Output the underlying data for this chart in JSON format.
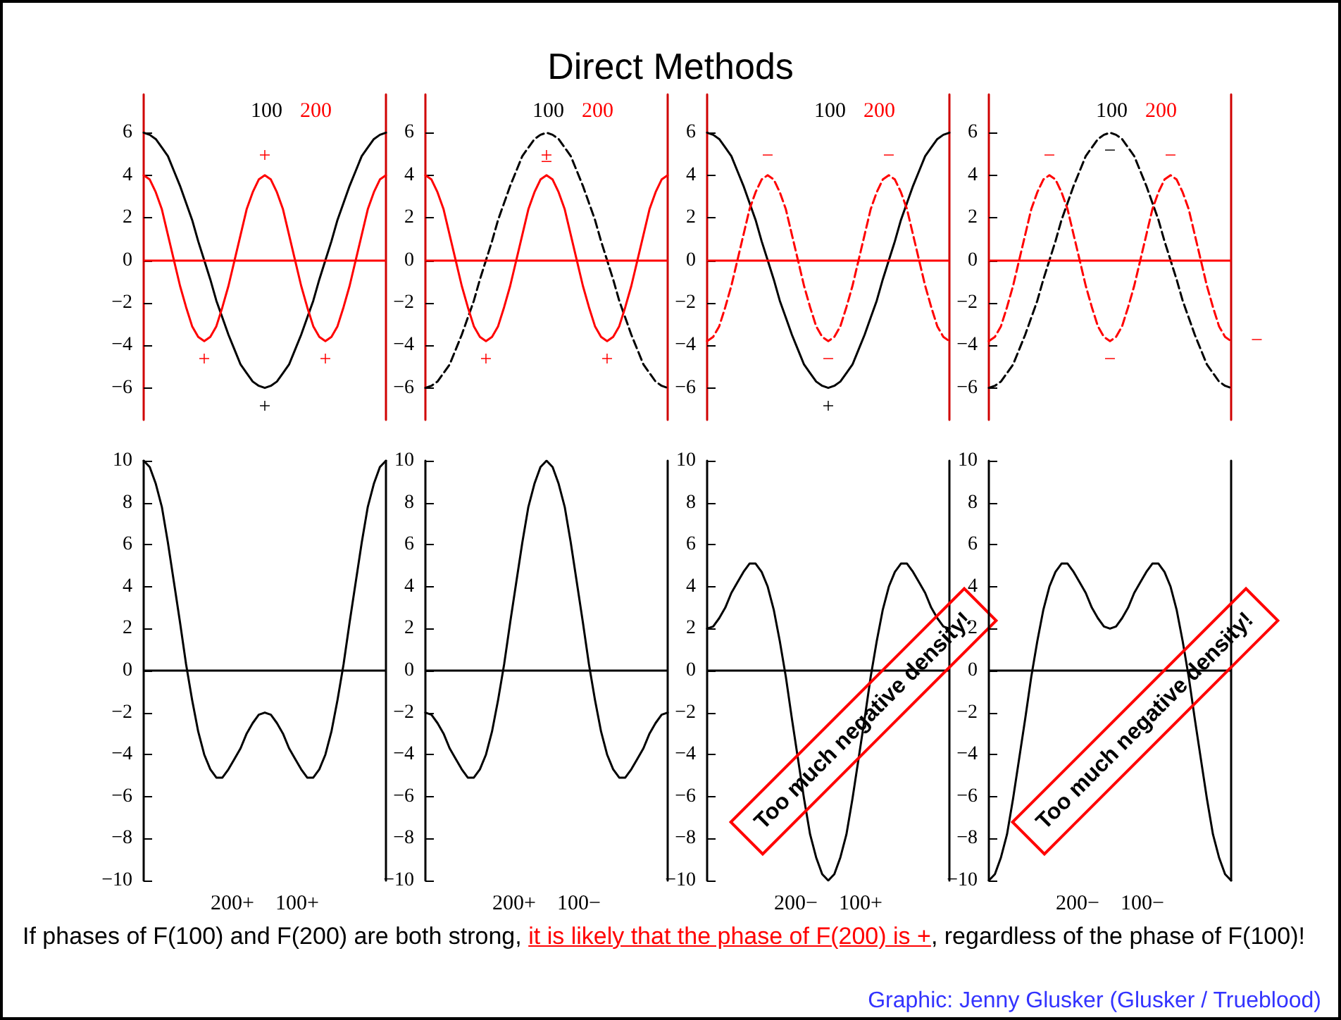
{
  "chart_data": [
    {
      "type": "line",
      "categories": [
        null,
        null,
        null,
        null,
        null,
        null,
        null,
        null,
        null,
        null,
        null,
        null,
        null,
        null,
        null,
        null,
        null,
        null,
        null,
        null,
        null,
        null,
        null,
        null,
        null,
        null,
        null,
        null,
        null,
        null,
        null,
        null,
        null,
        null,
        null,
        null,
        null,
        null,
        null,
        null,
        null
      ],
      "ylim": [
        -7.5,
        7.8
      ],
      "yticks": [
        -6,
        -4,
        -2,
        0,
        2,
        4,
        6
      ],
      "tick_labels": "y",
      "marker": "none",
      "ref_lines": [
        {
          "axis": "y",
          "value": 0,
          "color": "#ff0000"
        }
      ],
      "series": [
        {
          "name": "100",
          "color": "#000000",
          "line_style": "solid",
          "values": [
            6,
            5.9,
            5.7,
            5.3,
            4.9,
            4.2,
            3.5,
            2.7,
            1.9,
            0.9,
            0,
            -0.9,
            -1.9,
            -2.7,
            -3.5,
            -4.2,
            -4.9,
            -5.3,
            -5.7,
            -5.9,
            -6,
            -5.9,
            -5.7,
            -5.3,
            -4.9,
            -4.2,
            -3.5,
            -2.7,
            -1.9,
            -0.9,
            0,
            0.9,
            1.9,
            2.7,
            3.5,
            4.2,
            4.9,
            5.3,
            5.7,
            5.9,
            6
          ],
          "value_labels": [
            null,
            null,
            null,
            null,
            null,
            null,
            null,
            null,
            null,
            null,
            null,
            null,
            null,
            null,
            null,
            null,
            null,
            null,
            null,
            null,
            "+",
            null,
            null,
            null,
            null,
            null,
            null,
            null,
            null,
            null,
            null,
            null,
            null,
            null,
            null,
            null,
            null,
            null,
            null,
            null,
            null
          ]
        },
        {
          "name": "200",
          "color": "#ff0000",
          "line_style": "solid",
          "values": [
            4,
            3.8,
            3.2,
            2.4,
            1.2,
            0,
            -1.2,
            -2.2,
            -3.1,
            -3.6,
            -3.8,
            -3.6,
            -3.1,
            -2.2,
            -1.2,
            0,
            1.2,
            2.4,
            3.2,
            3.8,
            4,
            3.8,
            3.2,
            2.4,
            1.2,
            0,
            -1.2,
            -2.2,
            -3.1,
            -3.6,
            -3.8,
            -3.6,
            -3.1,
            -2.2,
            -1.2,
            0,
            1.2,
            2.4,
            3.2,
            3.8,
            4
          ],
          "value_labels": [
            null,
            null,
            null,
            null,
            null,
            null,
            null,
            null,
            null,
            null,
            "+",
            null,
            null,
            null,
            null,
            null,
            null,
            null,
            null,
            null,
            "+",
            null,
            null,
            null,
            null,
            null,
            null,
            null,
            null,
            null,
            "+",
            null,
            null,
            null,
            null,
            null,
            null,
            null,
            null,
            null,
            null
          ]
        }
      ],
      "annotations": [
        "Direct Methods",
        "If phases of F(100) and F(200) are both strong, ",
        "it is likely that the phase of F(200) is +",
        ", regardless of the phase of F(100)!",
        "Graphic: Jenny Glusker (Glusker / Trueblood)"
      ]
    },
    {
      "type": "line",
      "categories": [
        null,
        null,
        null,
        null,
        null,
        null,
        null,
        null,
        null,
        null,
        null,
        null,
        null,
        null,
        null,
        null,
        null,
        null,
        null,
        null,
        null,
        null,
        null,
        null,
        null,
        null,
        null,
        null,
        null,
        null,
        null,
        null,
        null,
        null,
        null,
        null,
        null,
        null,
        null,
        null,
        null
      ],
      "ylim": [
        -7.5,
        7.8
      ],
      "yticks": [
        -6,
        -4,
        -2,
        0,
        2,
        4,
        6
      ],
      "tick_labels": "y",
      "marker": "none",
      "ref_lines": [
        {
          "axis": "y",
          "value": 0,
          "color": "#ff0000"
        }
      ],
      "series": [
        {
          "name": "100",
          "color": "#000000",
          "line_style": "dashed",
          "values": [
            -6,
            -5.9,
            -5.7,
            -5.3,
            -4.9,
            -4.2,
            -3.5,
            -2.7,
            -1.9,
            -0.9,
            0,
            0.9,
            1.9,
            2.7,
            3.5,
            4.2,
            4.9,
            5.3,
            5.7,
            5.9,
            6,
            5.9,
            5.7,
            5.3,
            4.9,
            4.2,
            3.5,
            2.7,
            1.9,
            0.9,
            0,
            -0.9,
            -1.9,
            -2.7,
            -3.5,
            -4.2,
            -4.9,
            -5.3,
            -5.7,
            -5.9,
            -6
          ]
        },
        {
          "name": "200",
          "color": "#ff0000",
          "line_style": "solid",
          "values": [
            4,
            3.8,
            3.2,
            2.4,
            1.2,
            0,
            -1.2,
            -2.2,
            -3.1,
            -3.6,
            -3.8,
            -3.6,
            -3.1,
            -2.2,
            -1.2,
            0,
            1.2,
            2.4,
            3.2,
            3.8,
            4,
            3.8,
            3.2,
            2.4,
            1.2,
            0,
            -1.2,
            -2.2,
            -3.1,
            -3.6,
            -3.8,
            -3.6,
            -3.1,
            -2.2,
            -1.2,
            0,
            1.2,
            2.4,
            3.2,
            3.8,
            4
          ],
          "value_labels": [
            null,
            null,
            null,
            null,
            null,
            null,
            null,
            null,
            null,
            null,
            "+",
            null,
            null,
            null,
            null,
            null,
            null,
            null,
            null,
            null,
            "±",
            null,
            null,
            null,
            null,
            null,
            null,
            null,
            null,
            null,
            "+",
            null,
            null,
            null,
            null,
            null,
            null,
            null,
            null,
            null,
            null
          ]
        }
      ]
    },
    {
      "type": "line",
      "categories": [
        null,
        null,
        null,
        null,
        null,
        null,
        null,
        null,
        null,
        null,
        null,
        null,
        null,
        null,
        null,
        null,
        null,
        null,
        null,
        null,
        null,
        null,
        null,
        null,
        null,
        null,
        null,
        null,
        null,
        null,
        null,
        null,
        null,
        null,
        null,
        null,
        null,
        null,
        null,
        null,
        null
      ],
      "ylim": [
        -7.5,
        7.8
      ],
      "yticks": [
        -6,
        -4,
        -2,
        0,
        2,
        4,
        6
      ],
      "tick_labels": "y",
      "marker": "none",
      "ref_lines": [
        {
          "axis": "y",
          "value": 0,
          "color": "#ff0000"
        }
      ],
      "series": [
        {
          "name": "100",
          "color": "#000000",
          "line_style": "solid",
          "values": [
            6,
            5.9,
            5.7,
            5.3,
            4.9,
            4.2,
            3.5,
            2.7,
            1.9,
            0.9,
            0,
            -0.9,
            -1.9,
            -2.7,
            -3.5,
            -4.2,
            -4.9,
            -5.3,
            -5.7,
            -5.9,
            -6,
            -5.9,
            -5.7,
            -5.3,
            -4.9,
            -4.2,
            -3.5,
            -2.7,
            -1.9,
            -0.9,
            0,
            0.9,
            1.9,
            2.7,
            3.5,
            4.2,
            4.9,
            5.3,
            5.7,
            5.9,
            6
          ],
          "value_labels": [
            null,
            null,
            null,
            null,
            null,
            null,
            null,
            null,
            null,
            null,
            null,
            null,
            null,
            null,
            null,
            null,
            null,
            null,
            null,
            null,
            "+",
            null,
            null,
            null,
            null,
            null,
            null,
            null,
            null,
            null,
            null,
            null,
            null,
            null,
            null,
            null,
            null,
            null,
            null,
            null,
            null
          ]
        },
        {
          "name": "200",
          "color": "#ff0000",
          "line_style": "dashed",
          "values": [
            -3.8,
            -3.6,
            -3.1,
            -2.2,
            -1.2,
            0,
            1.2,
            2.4,
            3.2,
            3.8,
            4,
            3.8,
            3.2,
            2.4,
            1.2,
            0,
            -1.2,
            -2.2,
            -3.1,
            -3.6,
            -3.8,
            -3.6,
            -3.1,
            -2.2,
            -1.2,
            0,
            1.2,
            2.4,
            3.2,
            3.8,
            4,
            3.8,
            3.2,
            2.4,
            1.2,
            0,
            -1.2,
            -2.2,
            -3.1,
            -3.6,
            -3.8
          ],
          "value_labels": [
            null,
            null,
            null,
            null,
            null,
            null,
            null,
            null,
            null,
            null,
            "−",
            null,
            null,
            null,
            null,
            null,
            null,
            null,
            null,
            null,
            "−",
            null,
            null,
            null,
            null,
            null,
            null,
            null,
            null,
            null,
            "−",
            null,
            null,
            null,
            null,
            null,
            null,
            null,
            null,
            null,
            null
          ]
        }
      ]
    },
    {
      "type": "line",
      "categories": [
        null,
        null,
        null,
        null,
        null,
        null,
        null,
        null,
        null,
        null,
        null,
        null,
        null,
        null,
        null,
        null,
        null,
        null,
        null,
        null,
        null,
        null,
        null,
        null,
        null,
        null,
        null,
        null,
        null,
        null,
        null,
        null,
        null,
        null,
        null,
        null,
        null,
        null,
        null,
        null,
        null
      ],
      "ylim": [
        -7.5,
        7.8
      ],
      "yticks": [
        -6,
        -4,
        -2,
        0,
        2,
        4,
        6
      ],
      "tick_labels": "y",
      "marker": "none",
      "ref_lines": [
        {
          "axis": "y",
          "value": 0,
          "color": "#ff0000"
        }
      ],
      "series": [
        {
          "name": "100",
          "color": "#000000",
          "line_style": "dashed",
          "values": [
            -6,
            -5.9,
            -5.7,
            -5.3,
            -4.9,
            -4.2,
            -3.5,
            -2.7,
            -1.9,
            -0.9,
            0,
            0.9,
            1.9,
            2.7,
            3.5,
            4.2,
            4.9,
            5.3,
            5.7,
            5.9,
            6,
            5.9,
            5.7,
            5.3,
            4.9,
            4.2,
            3.5,
            2.7,
            1.9,
            0.9,
            0,
            -0.9,
            -1.9,
            -2.7,
            -3.5,
            -4.2,
            -4.9,
            -5.3,
            -5.7,
            -5.9,
            -6
          ],
          "value_labels": [
            null,
            null,
            null,
            null,
            null,
            null,
            null,
            null,
            null,
            null,
            null,
            null,
            null,
            null,
            null,
            null,
            null,
            null,
            null,
            null,
            "−",
            null,
            null,
            null,
            null,
            null,
            null,
            null,
            null,
            null,
            null,
            null,
            null,
            null,
            null,
            null,
            null,
            null,
            null,
            null,
            null
          ]
        },
        {
          "name": "200",
          "color": "#ff0000",
          "line_style": "dashed",
          "values": [
            -3.8,
            -3.6,
            -3.1,
            -2.2,
            -1.2,
            0,
            1.2,
            2.4,
            3.2,
            3.8,
            4,
            3.8,
            3.2,
            2.4,
            1.2,
            0,
            -1.2,
            -2.2,
            -3.1,
            -3.6,
            -3.8,
            -3.6,
            -3.1,
            -2.2,
            -1.2,
            0,
            1.2,
            2.4,
            3.2,
            3.8,
            4,
            3.8,
            3.2,
            2.4,
            1.2,
            0,
            -1.2,
            -2.2,
            -3.1,
            -3.6,
            -3.8
          ],
          "value_labels": [
            null,
            null,
            null,
            null,
            null,
            null,
            null,
            null,
            null,
            null,
            "−",
            null,
            null,
            null,
            null,
            null,
            null,
            null,
            null,
            null,
            "−",
            null,
            null,
            null,
            null,
            null,
            null,
            null,
            null,
            null,
            "−",
            null,
            null,
            null,
            null,
            null,
            null,
            null,
            null,
            null,
            "−"
          ]
        }
      ]
    },
    {
      "type": "line",
      "xlabel": "200+    100+",
      "categories": [
        null,
        null,
        null,
        null,
        null,
        null,
        null,
        null,
        null,
        null,
        null,
        null,
        null,
        null,
        null,
        null,
        null,
        null,
        null,
        null,
        null,
        null,
        null,
        null,
        null,
        null,
        null,
        null,
        null,
        null,
        null,
        null,
        null,
        null,
        null,
        null,
        null,
        null,
        null,
        null,
        null
      ],
      "ylim": [
        -10,
        10
      ],
      "yticks": [
        -10,
        -8,
        -6,
        -4,
        -2,
        0,
        2,
        4,
        6,
        8,
        10
      ],
      "tick_labels": "y",
      "marker": "none",
      "ref_lines": [
        {
          "axis": "y",
          "value": 0,
          "color": "#000000"
        }
      ],
      "series": [
        {
          "color": "#000000",
          "values": [
            10,
            9.7,
            8.9,
            7.8,
            6.1,
            4.2,
            2.3,
            0.3,
            -1.4,
            -2.9,
            -4,
            -4.7,
            -5.1,
            -5.1,
            -4.7,
            -4.2,
            -3.7,
            -3,
            -2.5,
            -2.1,
            -2,
            -2.1,
            -2.5,
            -3,
            -3.7,
            -4.2,
            -4.7,
            -5.1,
            -5.1,
            -4.7,
            -4,
            -2.9,
            -1.4,
            0.3,
            2.3,
            4.2,
            6.1,
            7.8,
            8.9,
            9.7,
            10
          ]
        }
      ]
    },
    {
      "type": "line",
      "xlabel": "200+    100−",
      "categories": [
        null,
        null,
        null,
        null,
        null,
        null,
        null,
        null,
        null,
        null,
        null,
        null,
        null,
        null,
        null,
        null,
        null,
        null,
        null,
        null,
        null,
        null,
        null,
        null,
        null,
        null,
        null,
        null,
        null,
        null,
        null,
        null,
        null,
        null,
        null,
        null,
        null,
        null,
        null,
        null,
        null
      ],
      "ylim": [
        -10,
        10
      ],
      "yticks": [
        -10,
        -8,
        -6,
        -4,
        -2,
        0,
        2,
        4,
        6,
        8,
        10
      ],
      "tick_labels": "y",
      "marker": "none",
      "ref_lines": [
        {
          "axis": "y",
          "value": 0,
          "color": "#000000"
        }
      ],
      "series": [
        {
          "color": "#000000",
          "values": [
            -2,
            -2.1,
            -2.5,
            -3,
            -3.7,
            -4.2,
            -4.7,
            -5.1,
            -5.1,
            -4.7,
            -4,
            -2.9,
            -1.4,
            0.3,
            2.3,
            4.2,
            6.1,
            7.8,
            8.9,
            9.7,
            10,
            9.7,
            8.9,
            7.8,
            6.1,
            4.2,
            2.3,
            0.3,
            -1.4,
            -2.9,
            -4,
            -4.7,
            -5.1,
            -5.1,
            -4.7,
            -4.2,
            -3.7,
            -3,
            -2.5,
            -2.1,
            -2
          ]
        }
      ]
    },
    {
      "type": "line",
      "xlabel": "200−    100+",
      "categories": [
        null,
        null,
        null,
        null,
        null,
        null,
        null,
        null,
        null,
        null,
        null,
        null,
        null,
        null,
        null,
        null,
        null,
        null,
        null,
        null,
        null,
        null,
        null,
        null,
        null,
        null,
        null,
        null,
        null,
        null,
        null,
        null,
        null,
        null,
        null,
        null,
        null,
        null,
        null,
        null,
        null
      ],
      "ylim": [
        -10,
        10
      ],
      "yticks": [
        -10,
        -8,
        -6,
        -4,
        -2,
        0,
        2,
        4,
        6,
        8,
        10
      ],
      "tick_labels": "y",
      "marker": "none",
      "ref_lines": [
        {
          "axis": "y",
          "value": 0,
          "color": "#000000"
        }
      ],
      "series": [
        {
          "color": "#000000",
          "values": [
            2,
            2.1,
            2.5,
            3,
            3.7,
            4.2,
            4.7,
            5.1,
            5.1,
            4.7,
            4,
            2.9,
            1.4,
            -0.3,
            -2.3,
            -4.2,
            -6.1,
            -7.8,
            -8.9,
            -9.7,
            -10,
            -9.7,
            -8.9,
            -7.8,
            -6.1,
            -4.2,
            -2.3,
            -0.3,
            1.4,
            2.9,
            4,
            4.7,
            5.1,
            5.1,
            4.7,
            4.2,
            3.7,
            3,
            2.5,
            2.1,
            2
          ]
        }
      ],
      "annotations": [
        "Too much negative density!"
      ]
    },
    {
      "type": "line",
      "xlabel": "200−    100−",
      "categories": [
        null,
        null,
        null,
        null,
        null,
        null,
        null,
        null,
        null,
        null,
        null,
        null,
        null,
        null,
        null,
        null,
        null,
        null,
        null,
        null,
        null,
        null,
        null,
        null,
        null,
        null,
        null,
        null,
        null,
        null,
        null,
        null,
        null,
        null,
        null,
        null,
        null,
        null,
        null,
        null,
        null
      ],
      "ylim": [
        -10,
        10
      ],
      "yticks": [
        -10,
        -8,
        -6,
        -4,
        -2,
        0,
        2,
        4,
        6,
        8,
        10
      ],
      "tick_labels": "y",
      "marker": "none",
      "ref_lines": [
        {
          "axis": "y",
          "value": 0,
          "color": "#000000"
        }
      ],
      "series": [
        {
          "color": "#000000",
          "values": [
            -10,
            -9.7,
            -8.9,
            -7.8,
            -6.1,
            -4.2,
            -2.3,
            -0.3,
            1.4,
            2.9,
            4,
            4.7,
            5.1,
            5.1,
            4.7,
            4.2,
            3.7,
            3,
            2.5,
            2.1,
            2,
            2.1,
            2.5,
            3,
            3.7,
            4.2,
            4.7,
            5.1,
            5.1,
            4.7,
            4,
            2.9,
            1.4,
            -0.3,
            -2.3,
            -4.2,
            -6.1,
            -7.8,
            -8.9,
            -9.7,
            -10
          ]
        }
      ],
      "annotations": [
        "Too much negative density!"
      ]
    }
  ]
}
